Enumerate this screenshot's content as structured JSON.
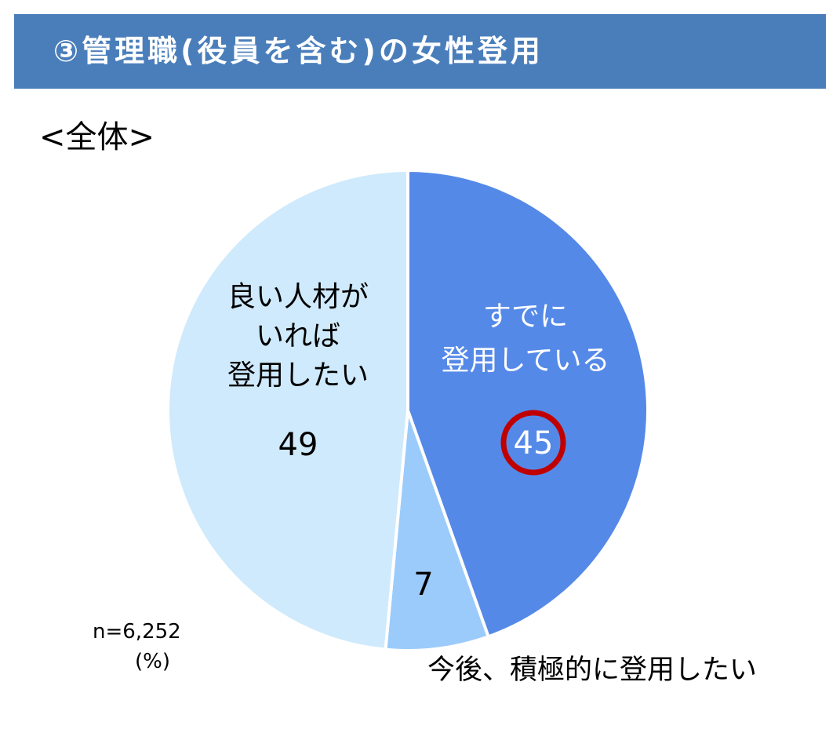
{
  "banner": {
    "title": "③管理職(役員を含む)の女性登用"
  },
  "subtitle": "<全体>",
  "notes": {
    "n": "n=6,252",
    "unit": "(%)"
  },
  "chart_data": {
    "type": "pie",
    "start": "12 o'clock, clockwise",
    "slices": [
      {
        "label": "すでに登用している",
        "label_lines": [
          "すでに",
          "登用している"
        ],
        "value": 45,
        "color": "#5589e8",
        "label_color": "#ffffff",
        "highlight": true
      },
      {
        "label": "今後、積極的に登用したい",
        "label_lines": [
          "今後、積極的に登用したい"
        ],
        "value": 7,
        "color": "#9bcbfb",
        "label_color": "#000000",
        "highlight": false
      },
      {
        "label": "良い人材がいれば登用したい",
        "label_lines": [
          "良い人材が",
          "いれば",
          "登用したい"
        ],
        "value": 49,
        "color": "#cfeafc",
        "label_color": "#000000",
        "highlight": false
      }
    ],
    "highlight_color": "#c00000"
  }
}
